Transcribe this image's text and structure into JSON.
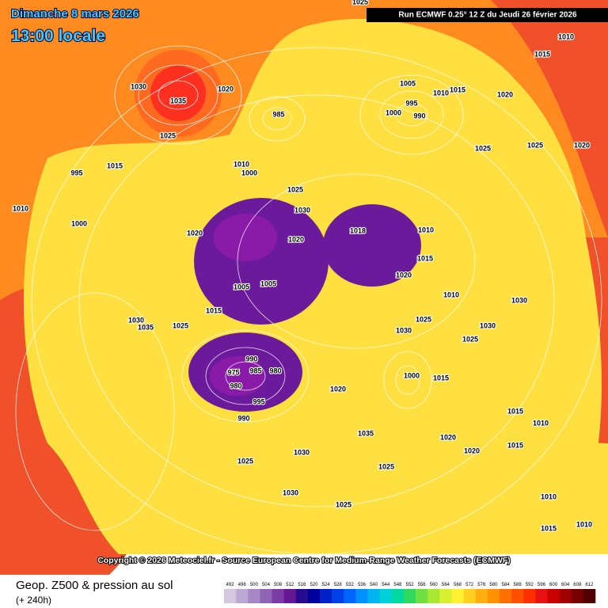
{
  "header": {
    "date": "Dimanche 8 mars 2026",
    "time": "13:00 locale",
    "run": "Run ECMWF 0.25° 12 Z du Jeudi 26 février 2026"
  },
  "copyright": "Copyright © 2026 Meteociel.fr - Source European Centre for Medium-Range Weather Forecasts (ECMWF)",
  "footer": {
    "title": "Geop. Z500 & pression au sol",
    "lead": "(+ 240h)"
  },
  "legend": {
    "levels": [
      492,
      496,
      500,
      504,
      508,
      512,
      516,
      520,
      524,
      528,
      532,
      536,
      540,
      544,
      548,
      552,
      556,
      560,
      564,
      568,
      572,
      576,
      580,
      584,
      588,
      592,
      596,
      600,
      604,
      608,
      612
    ],
    "colors": [
      "#d2c8e0",
      "#bca8d4",
      "#a688c4",
      "#9064b4",
      "#7a3ca4",
      "#641894",
      "#280c90",
      "#0000a0",
      "#0020c8",
      "#0040e8",
      "#0064ff",
      "#0090ff",
      "#00b4f0",
      "#00d0d8",
      "#00d8a0",
      "#30d860",
      "#70e040",
      "#a8e830",
      "#d8f030",
      "#fff030",
      "#ffd020",
      "#ffb010",
      "#ff9000",
      "#ff7000",
      "#ff5000",
      "#ff3000",
      "#e81010",
      "#c80000",
      "#a00000",
      "#780000",
      "#500000"
    ]
  },
  "pressure_labels": [
    1030,
    1035,
    1020,
    1025,
    985,
    1005,
    995,
    1000,
    990,
    1010,
    1020,
    1015,
    1025,
    1025,
    1020,
    1010,
    1015,
    1025,
    1015,
    995,
    1010,
    1000,
    1010,
    1000,
    1025,
    1030,
    1020,
    1020,
    1018,
    1010,
    1015,
    1020,
    1010,
    1030,
    1025,
    1030,
    1025,
    1030,
    1005,
    1005,
    1015,
    1025,
    1030,
    1035,
    990,
    975,
    985,
    980,
    980,
    995,
    990,
    1000,
    1015,
    1020,
    1035,
    1030,
    1025,
    1030,
    1025,
    1025,
    1020,
    1020,
    1015,
    1015,
    1010,
    1010,
    1015,
    1010
  ]
}
